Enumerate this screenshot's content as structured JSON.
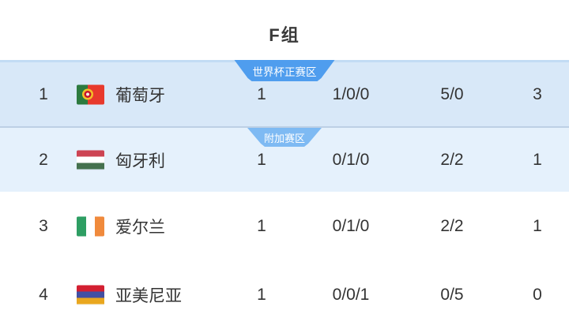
{
  "page": {
    "title": "F组"
  },
  "colors": {
    "row_highlight_1": "#d8e8f8",
    "row_highlight_2": "#e5f1fc",
    "row_top_border": "#c2dcf4",
    "row_separator": "#bdd0e5",
    "badge_primary": "#4f9dee",
    "badge_secondary": "#7ebaf3",
    "text": "#333333"
  },
  "badges": {
    "world_cup_zone": "世界杯正赛区",
    "playoff_zone": "附加赛区"
  },
  "table": {
    "rows": [
      {
        "rank": "1",
        "team": "葡萄牙",
        "flag": "portugal",
        "played": "1",
        "wdl": "1/0/0",
        "goals": "5/0",
        "points": "3"
      },
      {
        "rank": "2",
        "team": "匈牙利",
        "flag": "hungary",
        "played": "1",
        "wdl": "0/1/0",
        "goals": "2/2",
        "points": "1"
      },
      {
        "rank": "3",
        "team": "爱尔兰",
        "flag": "ireland",
        "played": "1",
        "wdl": "0/1/0",
        "goals": "2/2",
        "points": "1"
      },
      {
        "rank": "4",
        "team": "亚美尼亚",
        "flag": "armenia",
        "played": "1",
        "wdl": "0/0/1",
        "goals": "0/5",
        "points": "0"
      }
    ]
  },
  "flags": {
    "portugal": {
      "green": "#2c7a3f",
      "red": "#e8392c",
      "emblem_gold": "#f2c028",
      "emblem_red": "#c8102e",
      "emblem_white": "#f5f0e0"
    },
    "hungary": [
      "#cd4453",
      "#ffffff",
      "#45714e"
    ],
    "ireland": [
      "#2e9e63",
      "#ffffff",
      "#f08a3c"
    ],
    "armenia": [
      "#d31f31",
      "#414fa3",
      "#e9a71f"
    ]
  }
}
